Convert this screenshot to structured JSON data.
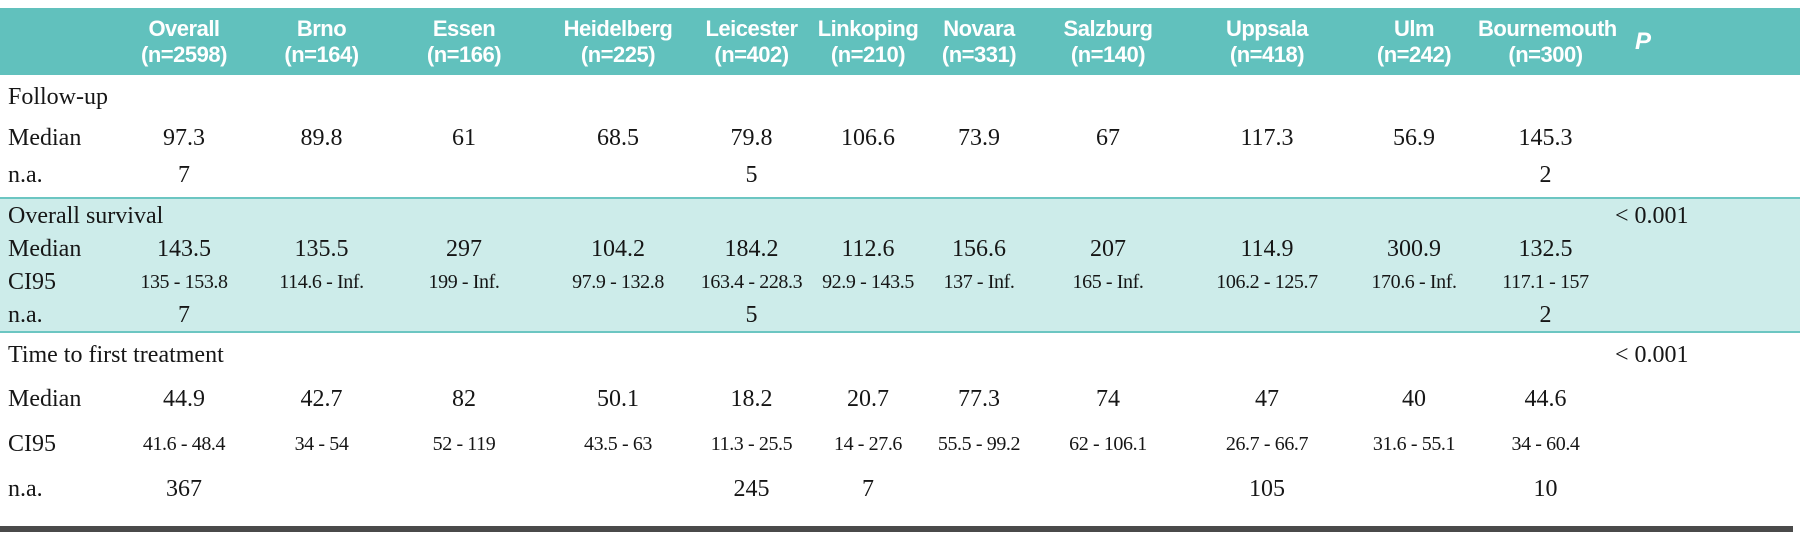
{
  "header": {
    "columns": [
      {
        "label": "Overall",
        "sub": "(n=2598)"
      },
      {
        "label": "Brno",
        "sub": "(n=164)"
      },
      {
        "label": "Essen",
        "sub": "(n=166)"
      },
      {
        "label": "Heidelberg",
        "sub": "(n=225)"
      },
      {
        "label": "Leicester",
        "sub": "(n=402)"
      },
      {
        "label": "Linkoping",
        "sub": "(n=210)"
      },
      {
        "label": "Novara",
        "sub": "(n=331)"
      },
      {
        "label": "Salzburg",
        "sub": "(n=140)"
      },
      {
        "label": "Uppsala",
        "sub": "(n=418)"
      },
      {
        "label": "Ulm",
        "sub": "(n=242)"
      },
      {
        "label": "Bournemouth",
        "sub": "(n=300)"
      }
    ],
    "p_label": "P"
  },
  "sections": [
    {
      "title": "Follow-up",
      "p": "",
      "rows": [
        {
          "label": "Median",
          "values": [
            "97.3",
            "89.8",
            "61",
            "68.5",
            "79.8",
            "106.6",
            "73.9",
            "67",
            "117.3",
            "56.9",
            "145.3"
          ]
        },
        {
          "label": "n.a.",
          "values": [
            "7",
            "",
            "",
            "",
            "5",
            "",
            "",
            "",
            "",
            "",
            "2"
          ]
        }
      ]
    },
    {
      "title": "Overall survival",
      "p": "< 0.001",
      "rows": [
        {
          "label": "Median",
          "values": [
            "143.5",
            "135.5",
            "297",
            "104.2",
            "184.2",
            "112.6",
            "156.6",
            "207",
            "114.9",
            "300.9",
            "132.5"
          ]
        },
        {
          "label": "CI95",
          "values": [
            "135 - 153.8",
            "114.6 - Inf.",
            "199 - Inf.",
            "97.9 - 132.8",
            "163.4 - 228.3",
            "92.9 - 143.5",
            "137 - Inf.",
            "165 - Inf.",
            "106.2 - 125.7",
            "170.6 - Inf.",
            "117.1 - 157"
          ]
        },
        {
          "label": "n.a.",
          "values": [
            "7",
            "",
            "",
            "",
            "5",
            "",
            "",
            "",
            "",
            "",
            "2"
          ]
        }
      ]
    },
    {
      "title": "Time to first treatment",
      "p": "< 0.001",
      "rows": [
        {
          "label": "Median",
          "values": [
            "44.9",
            "42.7",
            "82",
            "50.1",
            "18.2",
            "20.7",
            "77.3",
            "74",
            "47",
            "40",
            "44.6"
          ]
        },
        {
          "label": "CI95",
          "values": [
            "41.6 - 48.4",
            "34 - 54",
            "52 - 119",
            "43.5 - 63",
            "11.3 - 25.5",
            "14 - 27.6",
            "55.5 - 99.2",
            "62 - 106.1",
            "26.7 - 66.7",
            "31.6 - 55.1",
            "34 - 60.4"
          ]
        },
        {
          "label": "n.a.",
          "values": [
            "367",
            "",
            "",
            "",
            "245",
            "7",
            "",
            "",
            "105",
            "",
            "10"
          ]
        }
      ]
    }
  ],
  "colors": {
    "header_bg": "#61c1bd",
    "section_bg": "#cdecea",
    "section_border": "#6cc6c2",
    "rule": "#4a4a4a",
    "header_text": "#ffffff",
    "body_text": "#161616"
  }
}
